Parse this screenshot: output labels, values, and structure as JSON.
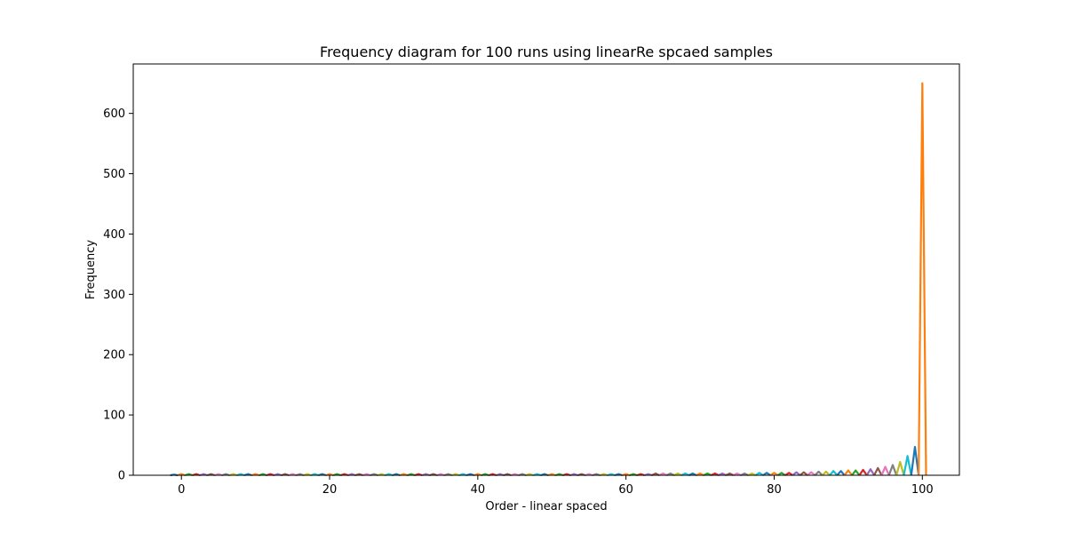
{
  "chart_data": {
    "type": "line",
    "title": "Frequency diagram for 100 runs using linearRe spcaed samples",
    "xlabel": "Order - linear spaced",
    "ylabel": "Frequency",
    "xlim": [
      -6.5,
      105
    ],
    "ylim": [
      0,
      682
    ],
    "xticks": [
      0,
      20,
      40,
      60,
      80,
      100
    ],
    "yticks": [
      0,
      100,
      200,
      300,
      400,
      500,
      600
    ],
    "grid": false,
    "legend": "none",
    "colors": [
      "#1f77b4",
      "#ff7f0e",
      "#2ca02c",
      "#d62728",
      "#9467bd",
      "#8c564b",
      "#e377c2",
      "#7f7f7f",
      "#bcbd22",
      "#17becf"
    ],
    "series_description": "one narrow spike per order value; spike height = frequency",
    "x": [
      -1,
      0,
      1,
      2,
      3,
      4,
      5,
      6,
      7,
      8,
      9,
      10,
      11,
      12,
      13,
      14,
      15,
      16,
      17,
      18,
      19,
      20,
      21,
      22,
      23,
      24,
      25,
      26,
      27,
      28,
      29,
      30,
      31,
      32,
      33,
      34,
      35,
      36,
      37,
      38,
      39,
      40,
      41,
      42,
      43,
      44,
      45,
      46,
      47,
      48,
      49,
      50,
      51,
      52,
      53,
      54,
      55,
      56,
      57,
      58,
      59,
      60,
      61,
      62,
      63,
      64,
      65,
      66,
      67,
      68,
      69,
      70,
      71,
      72,
      73,
      74,
      75,
      76,
      77,
      78,
      79,
      80,
      81,
      82,
      83,
      84,
      85,
      86,
      87,
      88,
      89,
      90,
      91,
      92,
      93,
      94,
      95,
      96,
      97,
      98,
      99,
      100
    ],
    "values": [
      1,
      2,
      2,
      2,
      2,
      2,
      2,
      2,
      2,
      2,
      2,
      2,
      2,
      2,
      2,
      2,
      2,
      2,
      2,
      2,
      2,
      2,
      2,
      2,
      2,
      2,
      2,
      2,
      2,
      2,
      2,
      2,
      2,
      2,
      2,
      2,
      2,
      2,
      2,
      2,
      2,
      2,
      2,
      2,
      2,
      2,
      2,
      2,
      2,
      2,
      2,
      2,
      2,
      2,
      2,
      2,
      2,
      2,
      2,
      2,
      2,
      2,
      2,
      2,
      2,
      3,
      3,
      3,
      3,
      3,
      3,
      3,
      3,
      3,
      3,
      3,
      3,
      3,
      3,
      4,
      4,
      4,
      4,
      4,
      5,
      5,
      5,
      6,
      6,
      7,
      7,
      8,
      8,
      9,
      10,
      12,
      14,
      17,
      22,
      32,
      47,
      650
    ]
  }
}
